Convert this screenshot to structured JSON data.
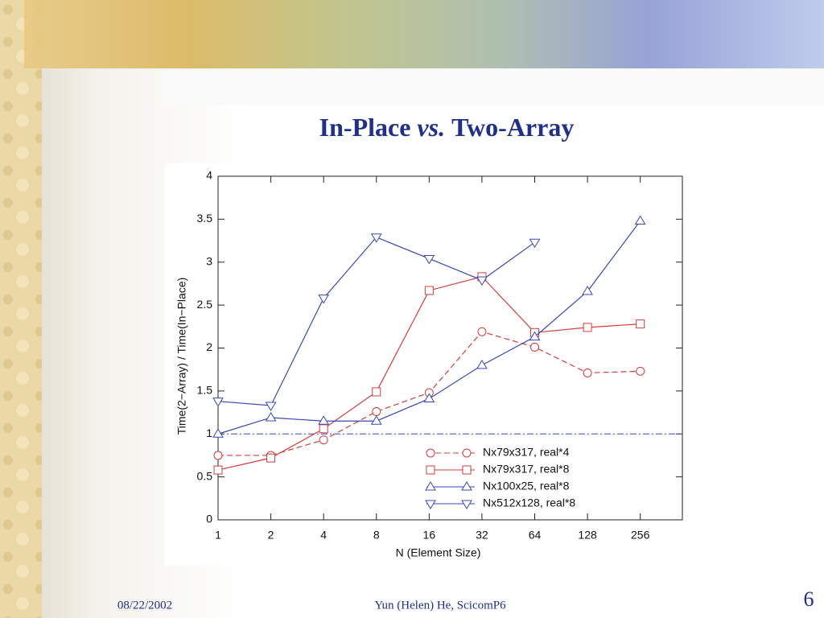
{
  "slide": {
    "title": [
      "In-Place",
      "vs.",
      "Two-Array"
    ],
    "date": "08/22/2002",
    "author": "Yun (Helen) He, ScicomP6",
    "page": "6"
  },
  "chart_data": {
    "type": "line",
    "x_label": "N (Element Size)",
    "y_label": "Time(2−Array) / Time(In−Place)",
    "x": [
      1,
      2,
      4,
      8,
      16,
      32,
      64,
      128,
      256
    ],
    "xscale": "log",
    "xlim": [
      1,
      445
    ],
    "xticks": [
      1,
      2,
      4,
      8,
      16,
      32,
      64,
      128,
      256
    ],
    "ylim": [
      0,
      4
    ],
    "yticks": [
      0,
      0.5,
      1,
      1.5,
      2,
      2.5,
      3,
      3.5,
      4
    ],
    "reference_line": 1,
    "reference_color": "#3a48b8",
    "legend": "lower right",
    "series": [
      {
        "name": "Nx79x317, real*4",
        "color": "#d43c3c",
        "dash": true,
        "marker": "circle",
        "values": [
          0.75,
          0.75,
          0.93,
          1.26,
          1.48,
          2.19,
          2.01,
          1.71,
          1.73
        ]
      },
      {
        "name": "Nx79x317, real*8",
        "color": "#d43c3c",
        "dash": false,
        "marker": "square",
        "values": [
          0.58,
          0.72,
          1.06,
          1.49,
          2.67,
          2.83,
          2.18,
          2.24,
          2.28
        ]
      },
      {
        "name": "Nx100x25, real*8",
        "color": "#3a48b8",
        "dash": false,
        "marker": "triangle-up",
        "values": [
          1.0,
          1.19,
          1.15,
          1.15,
          1.41,
          1.8,
          2.13,
          2.66,
          3.48
        ]
      },
      {
        "name": "Nx512x128, real*8",
        "color": "#3a48b8",
        "dash": false,
        "marker": "triangle-down",
        "values": [
          1.38,
          1.33,
          2.58,
          3.29,
          3.04,
          2.79,
          3.23,
          null,
          null
        ]
      }
    ]
  }
}
